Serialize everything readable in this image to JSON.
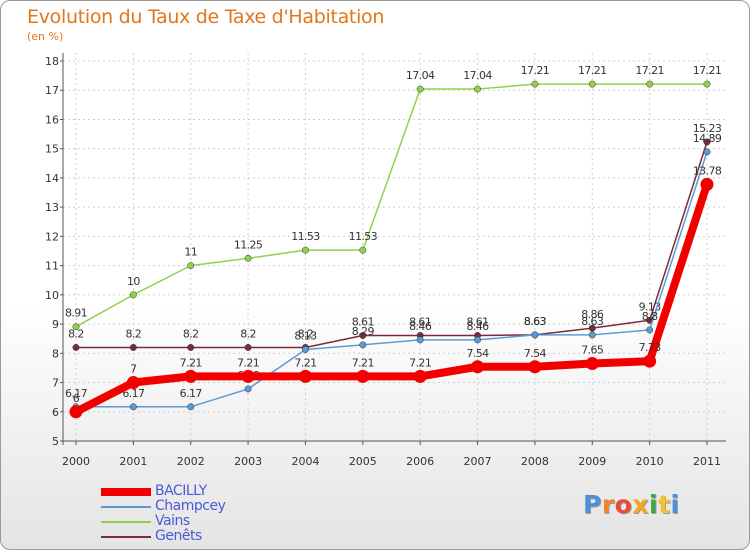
{
  "title": "Evolution du Taux de Taxe d'Habitation",
  "subtitle": "(en %)",
  "brand": {
    "letters": [
      "P",
      "r",
      "o",
      "x",
      "i",
      "t",
      "i"
    ],
    "colors": [
      "#4f8fd8",
      "#f0862a",
      "#e84d36",
      "#f5a623",
      "#39a845",
      "#f2c230",
      "#4f8fd8"
    ]
  },
  "chart_data": {
    "type": "line",
    "x": [
      "2000",
      "2001",
      "2002",
      "2003",
      "2004",
      "2005",
      "2006",
      "2007",
      "2008",
      "2009",
      "2010",
      "2011"
    ],
    "ylim": [
      5,
      18
    ],
    "yticks": [
      "5",
      "6",
      "7",
      "8",
      "9",
      "10",
      "11",
      "12",
      "13",
      "14",
      "15",
      "16",
      "17",
      "18"
    ],
    "grid": true,
    "legend_position": "bottom-left",
    "series": [
      {
        "name": "Vains",
        "color": "#8fd24a",
        "width": 1.5,
        "values": [
          8.91,
          10,
          11,
          11.25,
          11.53,
          11.53,
          17.04,
          17.04,
          17.21,
          17.21,
          17.21,
          17.21
        ],
        "labels": [
          "8.91",
          "10",
          "11",
          "11.25",
          "11.53",
          "11.53",
          "17.04",
          "17.04",
          "17.21",
          "17.21",
          "17.21",
          "17.21"
        ]
      },
      {
        "name": "Genêts",
        "color": "#7a2b3a",
        "width": 1.5,
        "values": [
          8.2,
          8.2,
          8.2,
          8.2,
          8.2,
          8.61,
          8.61,
          8.61,
          8.63,
          8.86,
          9.13,
          15.23
        ],
        "labels": [
          "8.2",
          "8.2",
          "8.2",
          "8.2",
          "8.2",
          "8.61",
          "8.61",
          "8.61",
          "8.63",
          "8.86",
          "9.13",
          "15.23"
        ]
      },
      {
        "name": "Champcey",
        "color": "#5b9bd5",
        "width": 1.5,
        "values": [
          6.17,
          6.17,
          6.17,
          6.78,
          8.13,
          8.29,
          8.46,
          8.46,
          8.63,
          8.63,
          8.8,
          14.89
        ],
        "labels": [
          "6.17",
          "6.17",
          "6.17",
          "6.78",
          "8.13",
          "8.29",
          "8.46",
          "8.46",
          "8.63",
          "8.63",
          "8.8",
          "14.89"
        ]
      },
      {
        "name": "BACILLY",
        "color": "#f20000",
        "width": 8,
        "values": [
          6,
          7,
          7.21,
          7.21,
          7.21,
          7.21,
          7.21,
          7.54,
          7.54,
          7.65,
          7.73,
          13.78
        ],
        "labels": [
          "6",
          "7",
          "7.21",
          "7.21",
          "7.21",
          "7.21",
          "7.21",
          "7.54",
          "7.54",
          "7.65",
          "7.73",
          "13.78"
        ]
      }
    ]
  },
  "legend": [
    {
      "name": "BACILLY",
      "color": "#f20000",
      "thickness": 8
    },
    {
      "name": "Champcey",
      "color": "#5b9bd5",
      "thickness": 2
    },
    {
      "name": "Vains",
      "color": "#8fd24a",
      "thickness": 2
    },
    {
      "name": "Genêts",
      "color": "#7a2b3a",
      "thickness": 2
    }
  ]
}
